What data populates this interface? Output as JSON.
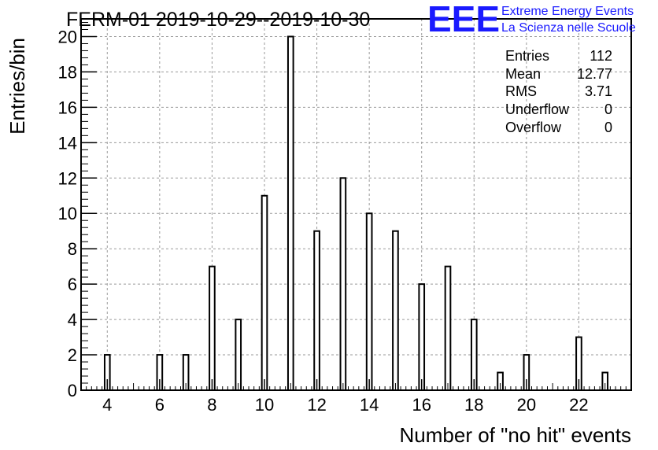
{
  "header": {
    "title": "FERM-01 2019-10-29--2019-10-30"
  },
  "logo": {
    "mark": "EEE",
    "line1": "Extreme Energy Events",
    "line2": "La Scienza nelle Scuole",
    "color": "#1a1aff"
  },
  "stats": {
    "rows": [
      {
        "label": "Entries",
        "value": "112"
      },
      {
        "label": "Mean",
        "value": "12.77"
      },
      {
        "label": "RMS",
        "value": "3.71"
      },
      {
        "label": "Underflow",
        "value": "0"
      },
      {
        "label": "Overflow",
        "value": "0"
      }
    ]
  },
  "chart_data": {
    "type": "bar",
    "xlabel": "Number of \"no hit\" events",
    "ylabel": "Entries/bin",
    "xlim": [
      3,
      24
    ],
    "ylim": [
      0,
      21
    ],
    "grid": true,
    "x_ticks": [
      4,
      6,
      8,
      10,
      12,
      14,
      16,
      18,
      20,
      22
    ],
    "y_ticks": [
      0,
      2,
      4,
      6,
      8,
      10,
      12,
      14,
      16,
      18,
      20
    ],
    "bar_width": 0.2,
    "x": [
      4,
      6,
      7,
      8,
      9,
      10,
      11,
      12,
      13,
      14,
      15,
      16,
      17,
      18,
      19,
      20,
      22,
      23
    ],
    "values": [
      2,
      2,
      2,
      7,
      4,
      11,
      20,
      9,
      12,
      10,
      9,
      6,
      7,
      4,
      1,
      2,
      3,
      1
    ]
  }
}
